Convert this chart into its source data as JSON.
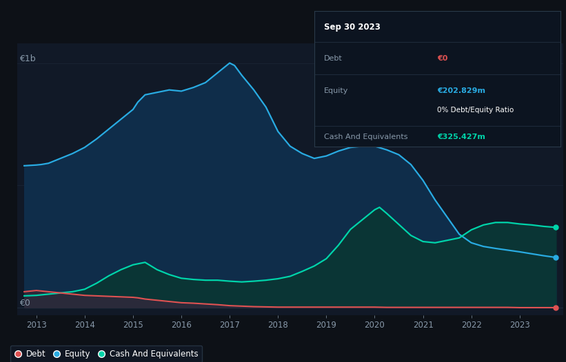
{
  "background_color": "#0d1117",
  "plot_bg_color": "#111927",
  "title_box": {
    "date": "Sep 30 2023",
    "debt_label": "Debt",
    "debt_value": "€0",
    "equity_label": "Equity",
    "equity_value": "€202.829m",
    "ratio_value": "0% Debt/Equity Ratio",
    "cash_label": "Cash And Equivalents",
    "cash_value": "€325.427m"
  },
  "ylabel_1b": "€1b",
  "ylabel_0": "€0",
  "x_ticks": [
    2013,
    2014,
    2015,
    2016,
    2017,
    2018,
    2019,
    2020,
    2021,
    2022,
    2023
  ],
  "equity_color": "#29abe2",
  "equity_fill": "#0f2d4a",
  "debt_color": "#e05252",
  "debt_fill": "#2a2a3a",
  "cash_color": "#00d4aa",
  "cash_fill": "#0a3535",
  "grid_color": "#1e2a3a",
  "legend_bg": "#111927",
  "legend_border": "#2a3a4a",
  "equity_data_x": [
    2012.75,
    2013.0,
    2013.1,
    2013.25,
    2013.5,
    2013.75,
    2014.0,
    2014.25,
    2014.5,
    2014.75,
    2015.0,
    2015.1,
    2015.25,
    2015.5,
    2015.75,
    2016.0,
    2016.25,
    2016.5,
    2016.75,
    2017.0,
    2017.1,
    2017.25,
    2017.5,
    2017.75,
    2018.0,
    2018.25,
    2018.5,
    2018.75,
    2019.0,
    2019.25,
    2019.5,
    2019.75,
    2020.0,
    2020.25,
    2020.5,
    2020.75,
    2021.0,
    2021.25,
    2021.5,
    2021.75,
    2022.0,
    2022.25,
    2022.5,
    2022.75,
    2023.0,
    2023.25,
    2023.5,
    2023.75
  ],
  "equity_data_y": [
    580,
    583,
    585,
    590,
    610,
    630,
    655,
    690,
    730,
    770,
    810,
    840,
    870,
    880,
    890,
    885,
    900,
    920,
    960,
    1000,
    990,
    950,
    890,
    820,
    720,
    660,
    630,
    610,
    620,
    640,
    655,
    660,
    660,
    645,
    625,
    585,
    520,
    440,
    370,
    300,
    265,
    250,
    242,
    235,
    228,
    220,
    212,
    205
  ],
  "debt_data_x": [
    2012.75,
    2013.0,
    2013.25,
    2013.5,
    2013.75,
    2014.0,
    2014.25,
    2014.5,
    2014.75,
    2015.0,
    2015.1,
    2015.25,
    2015.5,
    2015.75,
    2016.0,
    2016.25,
    2016.5,
    2016.75,
    2017.0,
    2017.25,
    2017.5,
    2017.75,
    2018.0,
    2018.25,
    2018.5,
    2018.75,
    2019.0,
    2019.25,
    2019.5,
    2019.75,
    2020.0,
    2020.25,
    2020.5,
    2020.75,
    2021.0,
    2021.25,
    2021.5,
    2021.75,
    2022.0,
    2022.25,
    2022.5,
    2022.75,
    2023.0,
    2023.25,
    2023.5,
    2023.75
  ],
  "debt_data_y": [
    65,
    70,
    65,
    60,
    55,
    50,
    48,
    46,
    44,
    42,
    40,
    35,
    30,
    25,
    20,
    18,
    15,
    12,
    8,
    6,
    4,
    3,
    2,
    2,
    2,
    2,
    2,
    2,
    2,
    2,
    2,
    1,
    1,
    1,
    1,
    1,
    1,
    1,
    1,
    1,
    1,
    1,
    0,
    0,
    0,
    0
  ],
  "cash_data_x": [
    2012.75,
    2013.0,
    2013.25,
    2013.5,
    2013.75,
    2014.0,
    2014.25,
    2014.5,
    2014.75,
    2015.0,
    2015.25,
    2015.5,
    2015.75,
    2016.0,
    2016.25,
    2016.5,
    2016.75,
    2017.0,
    2017.25,
    2017.5,
    2017.75,
    2018.0,
    2018.25,
    2018.5,
    2018.75,
    2019.0,
    2019.25,
    2019.5,
    2019.75,
    2020.0,
    2020.1,
    2020.25,
    2020.5,
    2020.75,
    2021.0,
    2021.25,
    2021.5,
    2021.75,
    2022.0,
    2022.25,
    2022.5,
    2022.75,
    2023.0,
    2023.25,
    2023.5,
    2023.75
  ],
  "cash_data_y": [
    48,
    50,
    55,
    60,
    65,
    75,
    100,
    130,
    155,
    175,
    185,
    155,
    135,
    120,
    115,
    112,
    112,
    108,
    105,
    108,
    112,
    118,
    128,
    148,
    170,
    200,
    255,
    320,
    360,
    400,
    410,
    385,
    340,
    295,
    270,
    265,
    275,
    285,
    318,
    338,
    348,
    348,
    342,
    338,
    332,
    328
  ],
  "y_max": 1080,
  "y_min": -30,
  "x_min": 2012.6,
  "x_max": 2023.9
}
